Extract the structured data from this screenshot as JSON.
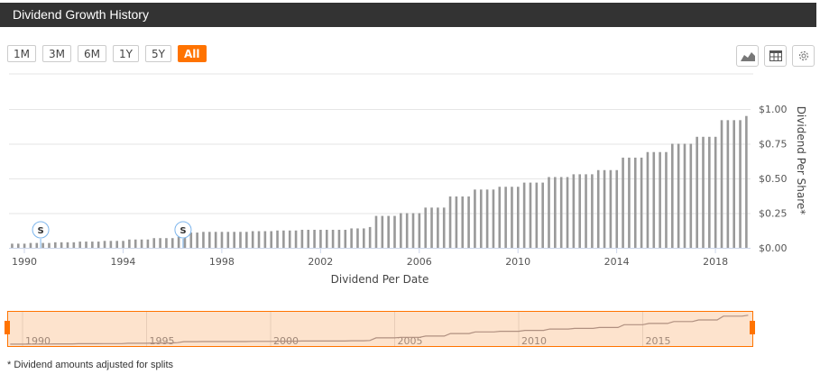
{
  "header": {
    "title": "Dividend Growth History"
  },
  "range_buttons": [
    {
      "label": "1M",
      "active": false
    },
    {
      "label": "3M",
      "active": false
    },
    {
      "label": "6M",
      "active": false
    },
    {
      "label": "1Y",
      "active": false
    },
    {
      "label": "5Y",
      "active": false
    },
    {
      "label": "All",
      "active": true
    }
  ],
  "tools": [
    "area-chart-icon",
    "table-icon",
    "gear-icon"
  ],
  "colors": {
    "accent": "#ff7300",
    "bar": "#999999",
    "navigator_fill": "#fde3cd",
    "split_marker": "#7cb5ec"
  },
  "chart_data": {
    "type": "bar",
    "xlabel": "Dividend Per Date",
    "ylabel": "Dividend Per Share*",
    "ylim": [
      0,
      1.0
    ],
    "yticks": [
      0,
      0.25,
      0.5,
      0.75,
      1.0
    ],
    "ytick_labels": [
      "$0.00",
      "$0.25",
      "$0.50",
      "$0.75",
      "$1.00"
    ],
    "xlim": [
      1989.45,
      2019.5
    ],
    "xticks": [
      1990,
      1994,
      1998,
      2002,
      2006,
      2010,
      2014,
      2018
    ],
    "xtick_labels": [
      "1990",
      "1994",
      "1998",
      "2002",
      "2006",
      "2010",
      "2014",
      "2018"
    ],
    "grid": true,
    "frequency": "quarterly",
    "start_year": 1989.5,
    "values": [
      0.03,
      0.03,
      0.03,
      0.035,
      0.035,
      0.035,
      0.035,
      0.04,
      0.04,
      0.04,
      0.04,
      0.045,
      0.045,
      0.045,
      0.045,
      0.05,
      0.05,
      0.05,
      0.05,
      0.06,
      0.06,
      0.06,
      0.06,
      0.07,
      0.07,
      0.07,
      0.07,
      0.08,
      0.11,
      0.11,
      0.11,
      0.115,
      0.115,
      0.115,
      0.115,
      0.115,
      0.115,
      0.115,
      0.115,
      0.12,
      0.12,
      0.12,
      0.12,
      0.125,
      0.125,
      0.125,
      0.125,
      0.13,
      0.13,
      0.13,
      0.13,
      0.13,
      0.13,
      0.13,
      0.13,
      0.14,
      0.14,
      0.14,
      0.15,
      0.23,
      0.23,
      0.23,
      0.23,
      0.25,
      0.25,
      0.25,
      0.25,
      0.29,
      0.29,
      0.29,
      0.29,
      0.37,
      0.37,
      0.37,
      0.37,
      0.42,
      0.42,
      0.42,
      0.42,
      0.44,
      0.44,
      0.44,
      0.44,
      0.47,
      0.47,
      0.47,
      0.47,
      0.51,
      0.51,
      0.51,
      0.51,
      0.53,
      0.53,
      0.53,
      0.53,
      0.56,
      0.56,
      0.56,
      0.56,
      0.65,
      0.65,
      0.65,
      0.65,
      0.69,
      0.69,
      0.69,
      0.69,
      0.75,
      0.75,
      0.75,
      0.75,
      0.8,
      0.8,
      0.8,
      0.8,
      0.92,
      0.92,
      0.92,
      0.92,
      0.95
    ],
    "split_markers": [
      {
        "year": 1990.66,
        "label": "S"
      },
      {
        "year": 1996.43,
        "label": "S"
      }
    ],
    "navigator": {
      "xticks": [
        1990,
        1995,
        2000,
        2005,
        2010,
        2015
      ],
      "xtick_labels": [
        "1990",
        "1995",
        "2000",
        "2005",
        "2010",
        "2015"
      ]
    }
  },
  "footer": {
    "note": "* Dividend amounts adjusted for splits"
  }
}
